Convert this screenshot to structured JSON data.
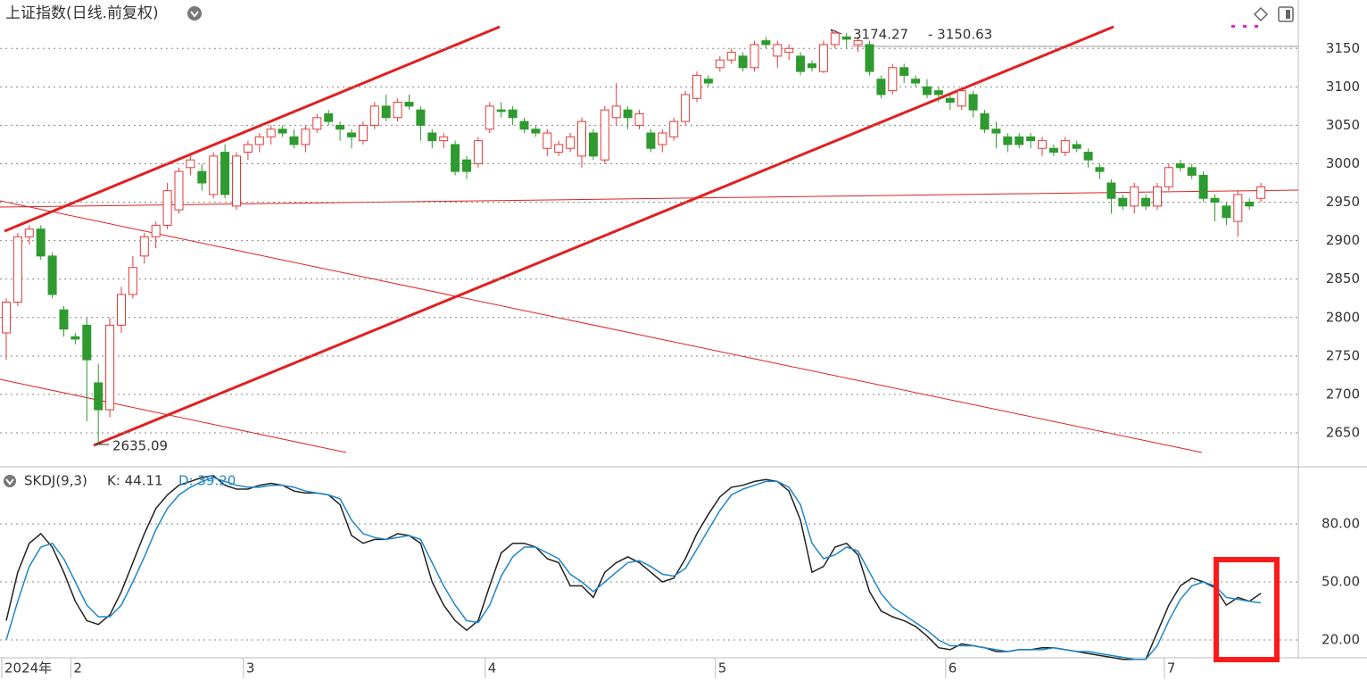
{
  "title": "上证指数(日线.前复权)",
  "chart_data": [
    {
      "type": "candlestick",
      "categories": [
        "2024年",
        null,
        null,
        null,
        null,
        null,
        "2",
        null,
        null,
        null,
        null,
        null,
        null,
        null,
        null,
        null,
        null,
        null,
        null,
        null,
        null,
        "3",
        null,
        null,
        null,
        null,
        null,
        null,
        null,
        null,
        null,
        null,
        null,
        null,
        null,
        null,
        null,
        null,
        null,
        null,
        null,
        null,
        "4",
        null,
        null,
        null,
        null,
        null,
        null,
        null,
        null,
        null,
        null,
        null,
        null,
        null,
        null,
        null,
        null,
        null,
        null,
        null,
        "5",
        null,
        null,
        null,
        null,
        null,
        null,
        null,
        null,
        null,
        null,
        null,
        null,
        null,
        null,
        null,
        null,
        null,
        null,
        null,
        "6",
        null,
        null,
        null,
        null,
        null,
        null,
        null,
        null,
        null,
        null,
        null,
        null,
        null,
        null,
        null,
        null,
        null,
        null,
        "7",
        null,
        null,
        null,
        null,
        null,
        null,
        null,
        null
      ],
      "open": [
        2780,
        2820,
        2905,
        2915,
        2880,
        2810,
        2775,
        2790,
        2715,
        2680,
        2790,
        2830,
        2880,
        2905,
        2920,
        2940,
        2995,
        2990,
        2960,
        3015,
        2945,
        3015,
        3025,
        3035,
        3045,
        3035,
        3025,
        3045,
        3065,
        3050,
        3040,
        3030,
        3050,
        3075,
        3060,
        3080,
        3070,
        3040,
        3030,
        3025,
        3005,
        3000,
        3045,
        3070,
        3070,
        3055,
        3045,
        3020,
        3015,
        3020,
        3010,
        3040,
        3005,
        3060,
        3070,
        3050,
        3040,
        3025,
        3035,
        3055,
        3085,
        3110,
        3125,
        3135,
        3140,
        3125,
        3160,
        3140,
        3145,
        3140,
        3130,
        3120,
        3155,
        3165,
        3155,
        3155,
        3110,
        3095,
        3125,
        3110,
        3100,
        3095,
        3085,
        3075,
        3090,
        3065,
        3045,
        3035,
        3035,
        3035,
        3020,
        3020,
        3015,
        3025,
        3015,
        2995,
        2975,
        2955,
        2945,
        2955,
        2945,
        2970,
        3000,
        2995,
        2985,
        2955,
        2945,
        2925,
        2950,
        2955
      ],
      "high": [
        2825,
        2910,
        2920,
        2920,
        2885,
        2815,
        2780,
        2800,
        2740,
        2800,
        2840,
        2880,
        2910,
        2925,
        2975,
        2995,
        3010,
        3000,
        3015,
        3025,
        3015,
        3030,
        3040,
        3050,
        3050,
        3045,
        3050,
        3065,
        3070,
        3055,
        3045,
        3055,
        3080,
        3090,
        3085,
        3090,
        3075,
        3045,
        3040,
        3030,
        3010,
        3035,
        3080,
        3080,
        3075,
        3060,
        3050,
        3045,
        3030,
        3040,
        3060,
        3045,
        3075,
        3105,
        3075,
        3070,
        3045,
        3045,
        3060,
        3095,
        3120,
        3115,
        3140,
        3150,
        3145,
        3160,
        3165,
        3160,
        3155,
        3145,
        3135,
        3160,
        3174.27,
        3170,
        3165,
        3160,
        3115,
        3130,
        3130,
        3115,
        3110,
        3100,
        3090,
        3100,
        3095,
        3070,
        3055,
        3040,
        3040,
        3040,
        3035,
        3025,
        3035,
        3030,
        3020,
        3000,
        2980,
        2960,
        2975,
        2960,
        2975,
        3000,
        3005,
        3000,
        2990,
        2960,
        2950,
        2965,
        2955,
        2975
      ],
      "low": [
        2745,
        2815,
        2895,
        2875,
        2825,
        2775,
        2765,
        2665,
        2635.09,
        2670,
        2780,
        2825,
        2870,
        2890,
        2915,
        2935,
        2985,
        2965,
        2955,
        2955,
        2940,
        3005,
        3015,
        3025,
        3035,
        3020,
        3015,
        3040,
        3050,
        3030,
        3020,
        3025,
        3045,
        3055,
        3055,
        3070,
        3030,
        3020,
        3020,
        2985,
        2980,
        2995,
        3040,
        3060,
        3050,
        3040,
        3035,
        3010,
        3010,
        3015,
        2995,
        3005,
        3000,
        3050,
        3045,
        3045,
        3015,
        3015,
        3030,
        3050,
        3080,
        3100,
        3120,
        3130,
        3120,
        3120,
        3150,
        3125,
        3135,
        3115,
        3120,
        3118,
        3150,
        3150,
        3145,
        3115,
        3085,
        3090,
        3105,
        3100,
        3085,
        3080,
        3070,
        3070,
        3060,
        3040,
        3020,
        3015,
        3020,
        3020,
        3010,
        3010,
        3010,
        3015,
        2995,
        2980,
        2935,
        2940,
        2935,
        2940,
        2940,
        2965,
        2990,
        2980,
        2950,
        2925,
        2920,
        2905,
        2940,
        2950
      ],
      "close": [
        2820,
        2905,
        2915,
        2880,
        2830,
        2785,
        2772,
        2745,
        2680,
        2790,
        2830,
        2865,
        2905,
        2920,
        2965,
        2990,
        3005,
        2975,
        3010,
        2960,
        3010,
        3025,
        3035,
        3045,
        3040,
        3025,
        3045,
        3060,
        3055,
        3045,
        3035,
        3050,
        3075,
        3060,
        3080,
        3075,
        3050,
        3030,
        3035,
        2990,
        2990,
        3030,
        3075,
        3068,
        3060,
        3045,
        3040,
        3040,
        3025,
        3035,
        3055,
        3010,
        3070,
        3075,
        3060,
        3065,
        3020,
        3040,
        3055,
        3090,
        3115,
        3105,
        3135,
        3145,
        3125,
        3155,
        3155,
        3155,
        3150,
        3120,
        3125,
        3155,
        3170,
        3162,
        3160,
        3120,
        3090,
        3125,
        3115,
        3105,
        3090,
        3090,
        3080,
        3095,
        3070,
        3045,
        3040,
        3025,
        3025,
        3030,
        3030,
        3015,
        3030,
        3020,
        3005,
        2990,
        2955,
        2945,
        2970,
        2945,
        2970,
        2995,
        2995,
        2985,
        2955,
        2950,
        2930,
        2960,
        2945,
        2970
      ],
      "up_color": "#e23a3a",
      "down_color": "#2f9a2f",
      "ylim": [
        2607,
        3213
      ],
      "yticks": [
        2650,
        2700,
        2750,
        2800,
        2850,
        2900,
        2950,
        3000,
        3050,
        3100,
        3150
      ],
      "grid": true,
      "annotations": [
        "3174.27",
        "- 3150.63",
        "2635.09"
      ]
    },
    {
      "type": "line",
      "title": "SKDJ(9,3)",
      "legend": [
        "K: 44.11",
        "D: 39.20"
      ],
      "series": [
        {
          "name": "K",
          "color": "#222222",
          "values": [
            30,
            55,
            70,
            75,
            68,
            55,
            40,
            30,
            28,
            33,
            45,
            60,
            75,
            88,
            95,
            100,
            102,
            104,
            105,
            100,
            98,
            98,
            100,
            101,
            100,
            97,
            96,
            96,
            95,
            90,
            74,
            70,
            72,
            72,
            75,
            74,
            70,
            50,
            38,
            30,
            25,
            30,
            48,
            65,
            70,
            70,
            68,
            62,
            60,
            48,
            48,
            42,
            55,
            60,
            63,
            60,
            55,
            50,
            52,
            62,
            75,
            85,
            94,
            99,
            100,
            102,
            103,
            102,
            97,
            82,
            55,
            58,
            68,
            70,
            64,
            45,
            35,
            32,
            30,
            27,
            22,
            16,
            15,
            18,
            17,
            16,
            14,
            14,
            15,
            15,
            16,
            16,
            15,
            14,
            13,
            12,
            11,
            10,
            10,
            10,
            24,
            38,
            48,
            52,
            50,
            47,
            38,
            42,
            40,
            44.11
          ]
        },
        {
          "name": "D",
          "color": "#1f86c8",
          "values": [
            20,
            40,
            58,
            68,
            70,
            62,
            50,
            38,
            32,
            32,
            38,
            50,
            63,
            77,
            88,
            95,
            99,
            102,
            104,
            102,
            100,
            99,
            99,
            100,
            100,
            99,
            97,
            96,
            95,
            93,
            82,
            75,
            73,
            72,
            73,
            74,
            72,
            60,
            48,
            38,
            30,
            29,
            38,
            53,
            63,
            68,
            68,
            65,
            62,
            54,
            50,
            45,
            50,
            55,
            60,
            61,
            58,
            54,
            53,
            57,
            67,
            77,
            87,
            95,
            98,
            100,
            102,
            102,
            99,
            90,
            70,
            62,
            64,
            68,
            66,
            55,
            44,
            37,
            33,
            29,
            25,
            20,
            17,
            17,
            17,
            16,
            15,
            14,
            15,
            15,
            15,
            16,
            15,
            14,
            14,
            13,
            12,
            11,
            10,
            10,
            17,
            30,
            41,
            48,
            50,
            48,
            42,
            41,
            40,
            39.2
          ]
        }
      ],
      "ylim": [
        11.7,
        107.7
      ],
      "yticks": [
        {
          "value": 20,
          "label": "20.00"
        },
        {
          "value": 50,
          "label": "50.00"
        },
        {
          "value": 80,
          "label": "80.00"
        }
      ],
      "grid": true
    }
  ]
}
